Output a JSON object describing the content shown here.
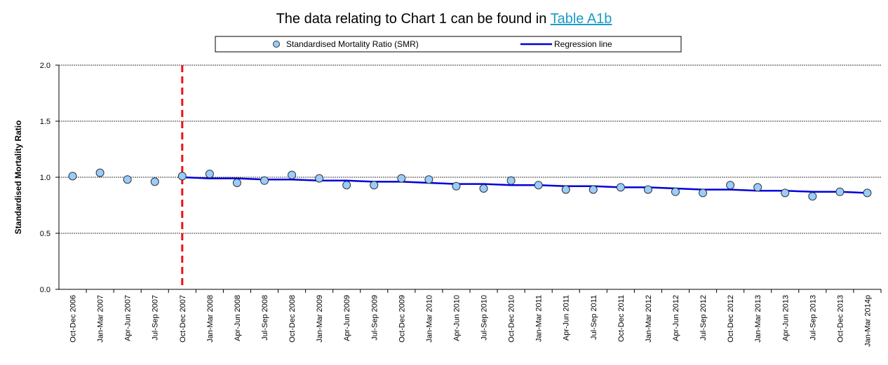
{
  "chart_data": {
    "type": "scatter-line",
    "title": "The data relating to Chart 1 can be found in",
    "title_link": "Table A1b",
    "y_label": "Standardised Mortality Ratio",
    "categories": [
      "Oct-Dec 2006",
      "Jan-Mar 2007",
      "Apr-Jun 2007",
      "Jul-Sep 2007",
      "Oct-Dec 2007",
      "Jan-Mar 2008",
      "Apr-Jun 2008",
      "Jul-Sep 2008",
      "Oct-Dec 2008",
      "Jan-Mar 2009",
      "Apr-Jun 2009",
      "Jul-Sep 2009",
      "Oct-Dec 2009",
      "Jan-Mar 2010",
      "Apr-Jun 2010",
      "Jul-Sep 2010",
      "Oct-Dec 2010",
      "Jan-Mar 2011",
      "Apr-Jun 2011",
      "Jul-Sep 2011",
      "Oct-Dec 2011",
      "Jan-Mar 2012",
      "Apr-Jun 2012",
      "Jul-Sep 2012",
      "Oct-Dec 2012",
      "Jan-Mar 2013",
      "Apr-Jun 2013",
      "Jul-Sep 2013",
      "Oct-Dec 2013",
      "Jan-Mar 2014p"
    ],
    "series": [
      {
        "name": "Standardised Mortality Ratio (SMR)",
        "kind": "points",
        "color": "#99ccff",
        "values": [
          1.01,
          1.04,
          0.98,
          0.96,
          1.01,
          1.03,
          0.95,
          0.97,
          1.02,
          0.99,
          0.93,
          0.93,
          0.99,
          0.98,
          0.92,
          0.9,
          0.97,
          0.93,
          0.89,
          0.89,
          0.91,
          0.89,
          0.87,
          0.86,
          0.93,
          0.91,
          0.86,
          0.83,
          0.87,
          0.86
        ]
      },
      {
        "name": "Regression line",
        "kind": "line",
        "color": "#0000dd",
        "values": [
          null,
          null,
          null,
          null,
          1.0,
          0.99,
          0.99,
          0.98,
          0.98,
          0.97,
          0.97,
          0.96,
          0.96,
          0.95,
          0.94,
          0.94,
          0.93,
          0.93,
          0.92,
          0.92,
          0.91,
          0.91,
          0.9,
          0.89,
          0.89,
          0.88,
          0.88,
          0.87,
          0.87,
          0.86
        ]
      }
    ],
    "reference_line": {
      "category": "Oct-Dec 2007",
      "color": "#ee1111"
    },
    "ylim": [
      0,
      2
    ],
    "yticks": [
      {
        "value": 0,
        "label": "0.0"
      },
      0.5,
      {
        "value": 1,
        "label": "1.0"
      },
      1.5,
      {
        "value": 2,
        "label": "2.0"
      }
    ],
    "grid": true
  }
}
